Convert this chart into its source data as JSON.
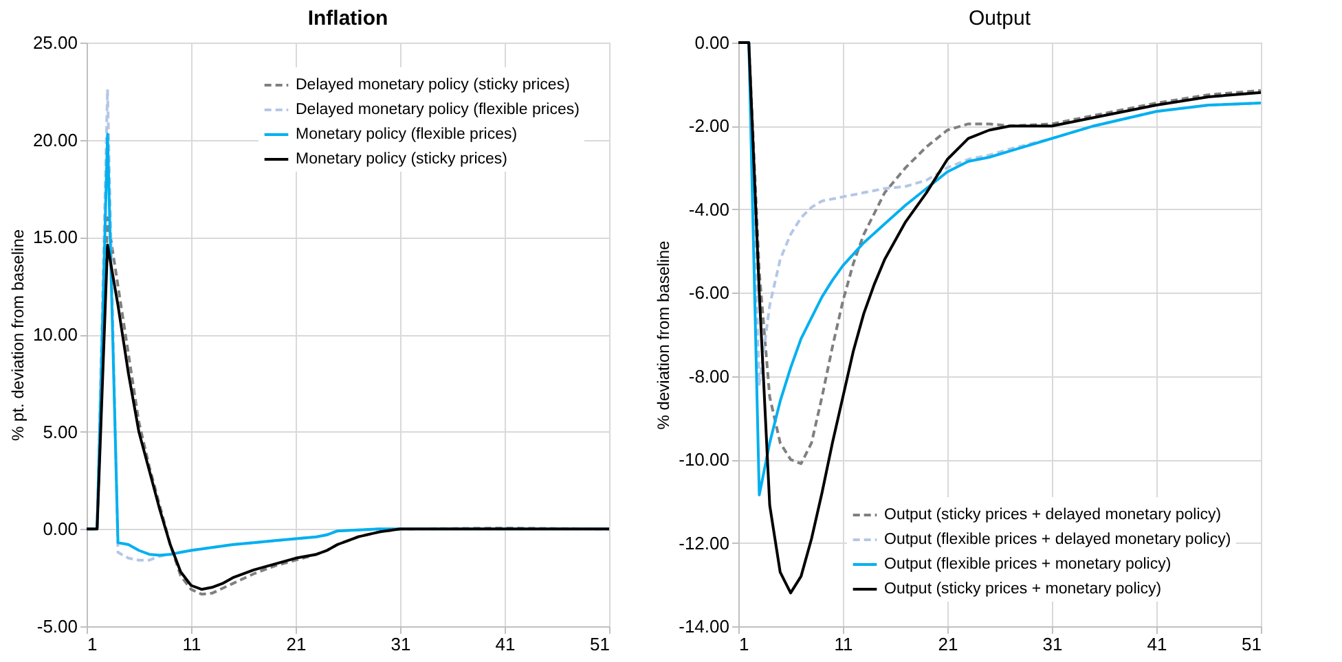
{
  "chart_data": [
    {
      "type": "line",
      "title": "Inflation",
      "ylabel": "% pt. deviation from baseline",
      "xlim": [
        1,
        51
      ],
      "xticks": [
        1,
        11,
        21,
        31,
        41,
        51
      ],
      "ylim": [
        -5,
        25
      ],
      "yticks": [
        {
          "value": -5,
          "label": "-5.00"
        },
        {
          "value": 0,
          "label": "0.00"
        },
        {
          "value": 5,
          "label": "5.00"
        },
        {
          "value": 10,
          "label": "10.00"
        },
        {
          "value": 15,
          "label": "15.00"
        },
        {
          "value": 20,
          "label": "20.00"
        },
        {
          "value": 25,
          "label": "25.00"
        }
      ],
      "grid": true,
      "legend": "top right",
      "series": [
        {
          "name": "Delayed monetary policy (sticky prices)",
          "color": "#7f7f7f",
          "line_style": "dashed",
          "x": [
            1,
            2,
            3,
            4,
            5,
            6,
            7,
            8,
            9,
            10,
            11,
            12,
            13,
            15,
            17,
            19,
            21,
            23,
            24,
            25,
            27,
            29,
            31,
            41,
            51
          ],
          "values": [
            0,
            0,
            16,
            12.5,
            9,
            5.5,
            3.2,
            1.2,
            -0.8,
            -2.4,
            -3.1,
            -3.35,
            -3.3,
            -2.8,
            -2.3,
            -1.9,
            -1.6,
            -1.3,
            -1.1,
            -0.8,
            -0.4,
            -0.15,
            0,
            0.05,
            0
          ]
        },
        {
          "name": "Delayed monetary policy (flexible prices)",
          "color": "#b4c7e7",
          "line_style": "dashed",
          "x": [
            1,
            2,
            3,
            4,
            5,
            6,
            7,
            8,
            9,
            10,
            11,
            13,
            15,
            17,
            19,
            21,
            23,
            24,
            25,
            27,
            29,
            51
          ],
          "values": [
            0,
            0,
            22.6,
            -1.2,
            -1.5,
            -1.6,
            -1.6,
            -1.4,
            -1.3,
            -1.2,
            -1.1,
            -0.95,
            -0.8,
            -0.7,
            -0.6,
            -0.5,
            -0.4,
            -0.3,
            -0.1,
            -0.05,
            0,
            0
          ]
        },
        {
          "name": "Monetary policy (flexible prices)",
          "color": "#00b0f0",
          "line_style": "solid",
          "x": [
            1,
            2,
            3,
            4,
            5,
            6,
            7,
            8,
            9,
            10,
            11,
            13,
            15,
            17,
            19,
            21,
            23,
            24,
            25,
            27,
            29,
            51
          ],
          "values": [
            0,
            0,
            20.3,
            -0.7,
            -0.8,
            -1.1,
            -1.3,
            -1.35,
            -1.3,
            -1.2,
            -1.1,
            -0.95,
            -0.8,
            -0.7,
            -0.6,
            -0.5,
            -0.4,
            -0.3,
            -0.1,
            -0.05,
            0,
            0
          ]
        },
        {
          "name": "Monetary policy (sticky prices)",
          "color": "#000000",
          "line_style": "solid",
          "x": [
            1,
            2,
            3,
            4,
            5,
            6,
            7,
            8,
            9,
            10,
            11,
            12,
            13,
            14,
            15,
            17,
            19,
            21,
            23,
            24,
            25,
            27,
            29,
            31,
            51
          ],
          "values": [
            0,
            0,
            14.6,
            11.5,
            8,
            5,
            3,
            1,
            -0.8,
            -2.2,
            -2.9,
            -3.1,
            -3.0,
            -2.8,
            -2.5,
            -2.1,
            -1.8,
            -1.5,
            -1.3,
            -1.1,
            -0.8,
            -0.4,
            -0.15,
            0,
            0
          ]
        }
      ]
    },
    {
      "type": "line",
      "title": "Output",
      "ylabel": "% deviation from baseline",
      "xlim": [
        1,
        51
      ],
      "xticks": [
        1,
        11,
        21,
        31,
        41,
        51
      ],
      "ylim": [
        -14,
        0
      ],
      "yticks": [
        {
          "value": -14,
          "label": "-14.00"
        },
        {
          "value": -12,
          "label": "-12.00"
        },
        {
          "value": -10,
          "label": "-10.00"
        },
        {
          "value": -8,
          "label": "-8.00"
        },
        {
          "value": -6,
          "label": "-6.00"
        },
        {
          "value": -4,
          "label": "-4.00"
        },
        {
          "value": -2,
          "label": "-2.00"
        },
        {
          "value": 0,
          "label": "0.00"
        }
      ],
      "grid": true,
      "legend": "bottom right",
      "series": [
        {
          "name": "Output (sticky prices + delayed monetary policy)",
          "color": "#7f7f7f",
          "line_style": "dashed",
          "x": [
            1,
            2,
            3,
            4,
            5,
            6,
            7,
            8,
            9,
            10,
            11,
            12,
            13,
            15,
            17,
            19,
            21,
            23,
            25,
            27,
            31,
            35,
            41,
            46,
            51
          ],
          "values": [
            0,
            0,
            -5.5,
            -8.5,
            -9.6,
            -10.0,
            -10.1,
            -9.6,
            -8.5,
            -7.3,
            -6.2,
            -5.3,
            -4.6,
            -3.6,
            -3.0,
            -2.5,
            -2.1,
            -1.95,
            -1.95,
            -2.0,
            -1.95,
            -1.75,
            -1.45,
            -1.25,
            -1.15
          ]
        },
        {
          "name": "Output (flexible prices + delayed monetary policy)",
          "color": "#b4c7e7",
          "line_style": "dashed",
          "x": [
            1,
            2,
            3,
            4,
            5,
            6,
            7,
            8,
            9,
            11,
            13,
            15,
            17,
            19,
            21,
            23,
            25,
            27,
            31,
            35,
            41,
            46,
            51
          ],
          "values": [
            0,
            0,
            -8.2,
            -6.3,
            -5.2,
            -4.6,
            -4.2,
            -3.95,
            -3.8,
            -3.7,
            -3.6,
            -3.5,
            -3.45,
            -3.3,
            -3.0,
            -2.8,
            -2.7,
            -2.55,
            -2.3,
            -2.0,
            -1.65,
            -1.5,
            -1.45
          ]
        },
        {
          "name": "Output (flexible prices + monetary policy)",
          "color": "#00b0f0",
          "line_style": "solid",
          "x": [
            1,
            2,
            3,
            4,
            5,
            6,
            7,
            8,
            9,
            10,
            11,
            13,
            15,
            17,
            19,
            21,
            23,
            25,
            27,
            31,
            35,
            41,
            46,
            51
          ],
          "values": [
            0,
            0,
            -10.85,
            -9.6,
            -8.6,
            -7.8,
            -7.1,
            -6.6,
            -6.1,
            -5.7,
            -5.35,
            -4.8,
            -4.35,
            -3.9,
            -3.5,
            -3.1,
            -2.85,
            -2.75,
            -2.6,
            -2.3,
            -2.0,
            -1.65,
            -1.5,
            -1.45
          ]
        },
        {
          "name": "Output (sticky prices + monetary policy)",
          "color": "#000000",
          "line_style": "solid",
          "x": [
            1,
            2,
            3,
            4,
            5,
            6,
            7,
            8,
            9,
            10,
            11,
            12,
            13,
            14,
            15,
            17,
            19,
            21,
            23,
            25,
            27,
            31,
            35,
            41,
            46,
            51
          ],
          "values": [
            0,
            0,
            -6,
            -11.1,
            -12.7,
            -13.2,
            -12.8,
            -11.9,
            -10.8,
            -9.6,
            -8.5,
            -7.4,
            -6.5,
            -5.8,
            -5.2,
            -4.3,
            -3.6,
            -2.8,
            -2.3,
            -2.1,
            -2.0,
            -2.0,
            -1.8,
            -1.5,
            -1.3,
            -1.2
          ]
        }
      ]
    }
  ]
}
